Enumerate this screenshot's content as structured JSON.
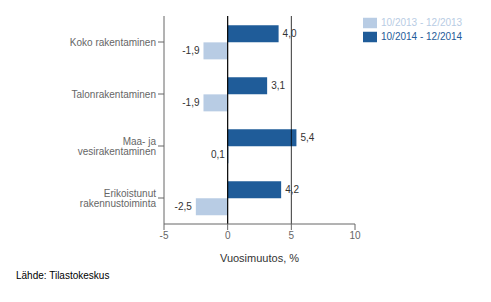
{
  "chart_data": {
    "type": "bar",
    "orientation": "horizontal",
    "categories": [
      "Koko rakentaminen",
      "Talonrakentaminen",
      "Maa- ja vesirakentaminen",
      "Erikoistunut rakennustoiminta"
    ],
    "series": [
      {
        "name": "10/2014 - 12/2014",
        "color": "#1f5c99",
        "values": [
          4.0,
          3.1,
          5.4,
          4.2
        ],
        "value_labels": [
          "4,0",
          "3,1",
          "5,4",
          "4,2"
        ]
      },
      {
        "name": "10/2013 - 12/2013",
        "color": "#b8cce4",
        "values": [
          -1.9,
          -1.9,
          0.1,
          -2.5
        ],
        "value_labels": [
          "-1,9",
          "-1,9",
          "0,1",
          "-2,5"
        ]
      }
    ],
    "xlabel": "Vuosimuutos, %",
    "xlim": [
      -5,
      10
    ],
    "xticks": [
      -5,
      0,
      5,
      10
    ],
    "data_labels": true,
    "legend": "right",
    "vlines": [
      0,
      5
    ],
    "annotations": [
      "Lähde: Tilastokeskus"
    ]
  }
}
